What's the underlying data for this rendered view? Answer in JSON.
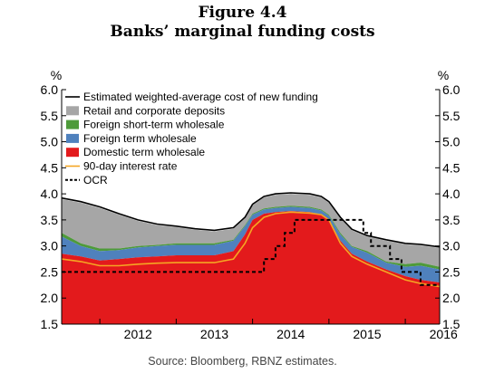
{
  "figure": {
    "number": "Figure 4.4",
    "title": "Banks’ marginal funding costs"
  },
  "source": "Source: Bloomberg, RBNZ estimates.",
  "chart_data": {
    "type": "area",
    "ylabel_left": "%",
    "ylabel_right": "%",
    "ylim": [
      1.5,
      6.0
    ],
    "yticks": [
      "1.5",
      "2.0",
      "2.5",
      "3.0",
      "3.5",
      "4.0",
      "4.5",
      "5.0",
      "5.5",
      "6.0"
    ],
    "xlim": [
      2011.5,
      2016.45
    ],
    "xticks": [
      "2012",
      "2013",
      "2014",
      "2015",
      "2016"
    ],
    "legend_position": "top-left",
    "grid": false,
    "x": [
      2011.5,
      2011.75,
      2012.0,
      2012.25,
      2012.5,
      2012.75,
      2013.0,
      2013.25,
      2013.5,
      2013.75,
      2013.9,
      2014.0,
      2014.15,
      2014.3,
      2014.5,
      2014.75,
      2014.9,
      2015.0,
      2015.15,
      2015.3,
      2015.5,
      2015.75,
      2016.0,
      2016.2,
      2016.45
    ],
    "series": [
      {
        "name": "Estimated weighted-average cost of new funding",
        "kind": "line",
        "color": "#000000",
        "values": [
          3.92,
          3.85,
          3.75,
          3.62,
          3.5,
          3.42,
          3.38,
          3.33,
          3.3,
          3.35,
          3.55,
          3.8,
          3.95,
          4.0,
          4.02,
          4.0,
          3.95,
          3.85,
          3.55,
          3.32,
          3.2,
          3.12,
          3.05,
          3.03,
          2.98
        ]
      },
      {
        "name": "Retail and corporate deposits",
        "kind": "area",
        "color": "#a6a6a6",
        "values": [
          3.9,
          3.83,
          3.73,
          3.6,
          3.48,
          3.4,
          3.36,
          3.31,
          3.28,
          3.33,
          3.53,
          3.78,
          3.93,
          3.98,
          4.0,
          3.98,
          3.93,
          3.83,
          3.53,
          3.3,
          3.18,
          3.1,
          3.03,
          3.01,
          2.96
        ]
      },
      {
        "name": "Foreign short-term wholesale",
        "kind": "area",
        "color": "#4e9a3a",
        "values": [
          3.25,
          3.05,
          2.95,
          2.95,
          3.0,
          3.02,
          3.05,
          3.05,
          3.05,
          3.12,
          3.4,
          3.62,
          3.72,
          3.75,
          3.77,
          3.75,
          3.7,
          3.6,
          3.25,
          3.0,
          2.9,
          2.7,
          2.65,
          2.68,
          2.6
        ]
      },
      {
        "name": "Foreign term wholesale",
        "kind": "area",
        "color": "#4f81bd",
        "values": [
          3.18,
          3.0,
          2.9,
          2.92,
          2.97,
          3.0,
          3.02,
          3.02,
          3.02,
          3.1,
          3.38,
          3.6,
          3.7,
          3.73,
          3.75,
          3.73,
          3.68,
          3.58,
          3.22,
          2.98,
          2.87,
          2.68,
          2.6,
          2.62,
          2.55
        ]
      },
      {
        "name": "Domestic term wholesale",
        "kind": "area",
        "color": "#e31a1c",
        "values": [
          2.85,
          2.8,
          2.72,
          2.75,
          2.78,
          2.8,
          2.82,
          2.82,
          2.82,
          2.9,
          3.22,
          3.5,
          3.62,
          3.65,
          3.67,
          3.65,
          3.6,
          3.5,
          3.1,
          2.85,
          2.7,
          2.55,
          2.42,
          2.35,
          2.3
        ]
      },
      {
        "name": "90-day interest rate",
        "kind": "line",
        "color": "#f5a623",
        "values": [
          2.75,
          2.7,
          2.62,
          2.62,
          2.65,
          2.67,
          2.68,
          2.68,
          2.68,
          2.75,
          3.05,
          3.35,
          3.55,
          3.62,
          3.65,
          3.63,
          3.6,
          3.5,
          3.05,
          2.8,
          2.65,
          2.5,
          2.35,
          2.28,
          2.22
        ]
      },
      {
        "name": "OCR",
        "kind": "line",
        "style": "dashed",
        "color": "#000000",
        "x": [
          2011.5,
          2014.15,
          2014.15,
          2014.3,
          2014.3,
          2014.42,
          2014.42,
          2014.55,
          2014.55,
          2015.45,
          2015.45,
          2015.55,
          2015.55,
          2015.8,
          2015.8,
          2015.95,
          2015.95,
          2016.2,
          2016.2,
          2016.45
        ],
        "values": [
          2.5,
          2.5,
          2.75,
          2.75,
          3.0,
          3.0,
          3.25,
          3.25,
          3.5,
          3.5,
          3.25,
          3.25,
          3.0,
          3.0,
          2.75,
          2.75,
          2.5,
          2.5,
          2.25,
          2.25
        ]
      }
    ]
  }
}
